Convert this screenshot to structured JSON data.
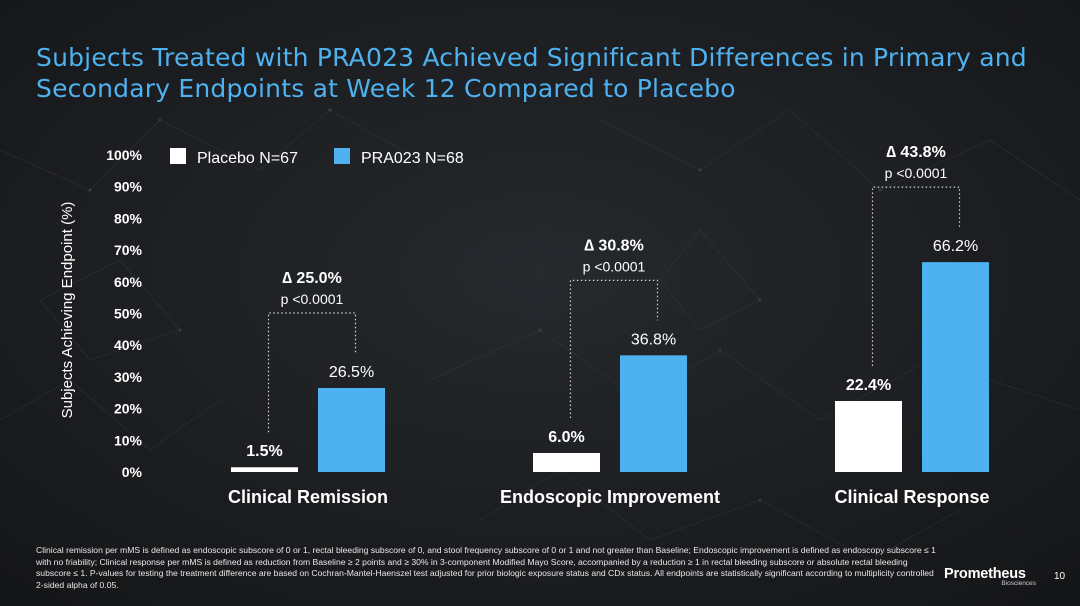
{
  "title": "Subjects Treated with PRA023 Achieved Significant Differences in Primary and Secondary Endpoints at Week 12 Compared to Placebo",
  "chart_data": {
    "type": "bar",
    "title": "",
    "ylabel": "Subjects Achieving Endpoint (%)",
    "xlabel": "",
    "ylim": [
      0,
      100
    ],
    "yticks": [
      0,
      10,
      20,
      30,
      40,
      50,
      60,
      70,
      80,
      90,
      100
    ],
    "ytick_labels": [
      "0%",
      "10%",
      "20%",
      "30%",
      "40%",
      "50%",
      "60%",
      "70%",
      "80%",
      "90%",
      "100%"
    ],
    "categories": [
      "Clinical Remission",
      "Endoscopic Improvement",
      "Clinical Response"
    ],
    "series": [
      {
        "name": "Placebo N=67",
        "color": "#ffffff",
        "values": [
          1.5,
          6.0,
          22.4
        ],
        "labels": [
          "1.5%",
          "6.0%",
          "22.4%"
        ]
      },
      {
        "name": "PRA023 N=68",
        "color": "#4eb2f0",
        "values": [
          26.5,
          36.8,
          66.2
        ],
        "labels": [
          "26.5%",
          "36.8%",
          "66.2%"
        ]
      }
    ],
    "annotations": [
      {
        "delta": "∆ 25.0%",
        "p": "p <0.0001"
      },
      {
        "delta": "∆ 30.8%",
        "p": "p <0.0001"
      },
      {
        "delta": "∆ 43.8%",
        "p": "p <0.0001"
      }
    ],
    "legend_position": "top",
    "grid": false
  },
  "footnote": "Clinical remission per mMS is defined as endoscopic subscore of 0 or 1, rectal bleeding subscore of 0, and stool frequency subscore of 0 or 1 and not greater than Baseline; Endoscopic improvement is defined as endoscopy subscore ≤ 1 with no friability; Clinical response per mMS is defined as reduction from Baseline ≥ 2 points and ≥ 30% in 3-component Modified Mayo Score, accompanied by a reduction ≥ 1 in rectal bleeding subscore or absolute rectal bleeding subscore ≤ 1. P-values for testing the treatment difference are based on Cochran-Mantel-Haenszel test adjusted for prior biologic exposure status and CDx status. All endpoints are statistically significant according to multiplicity controlled 2-sided alpha of 0.05.",
  "logo": {
    "name": "Prometheus",
    "sub": "Biosciences"
  },
  "page_number": "10"
}
